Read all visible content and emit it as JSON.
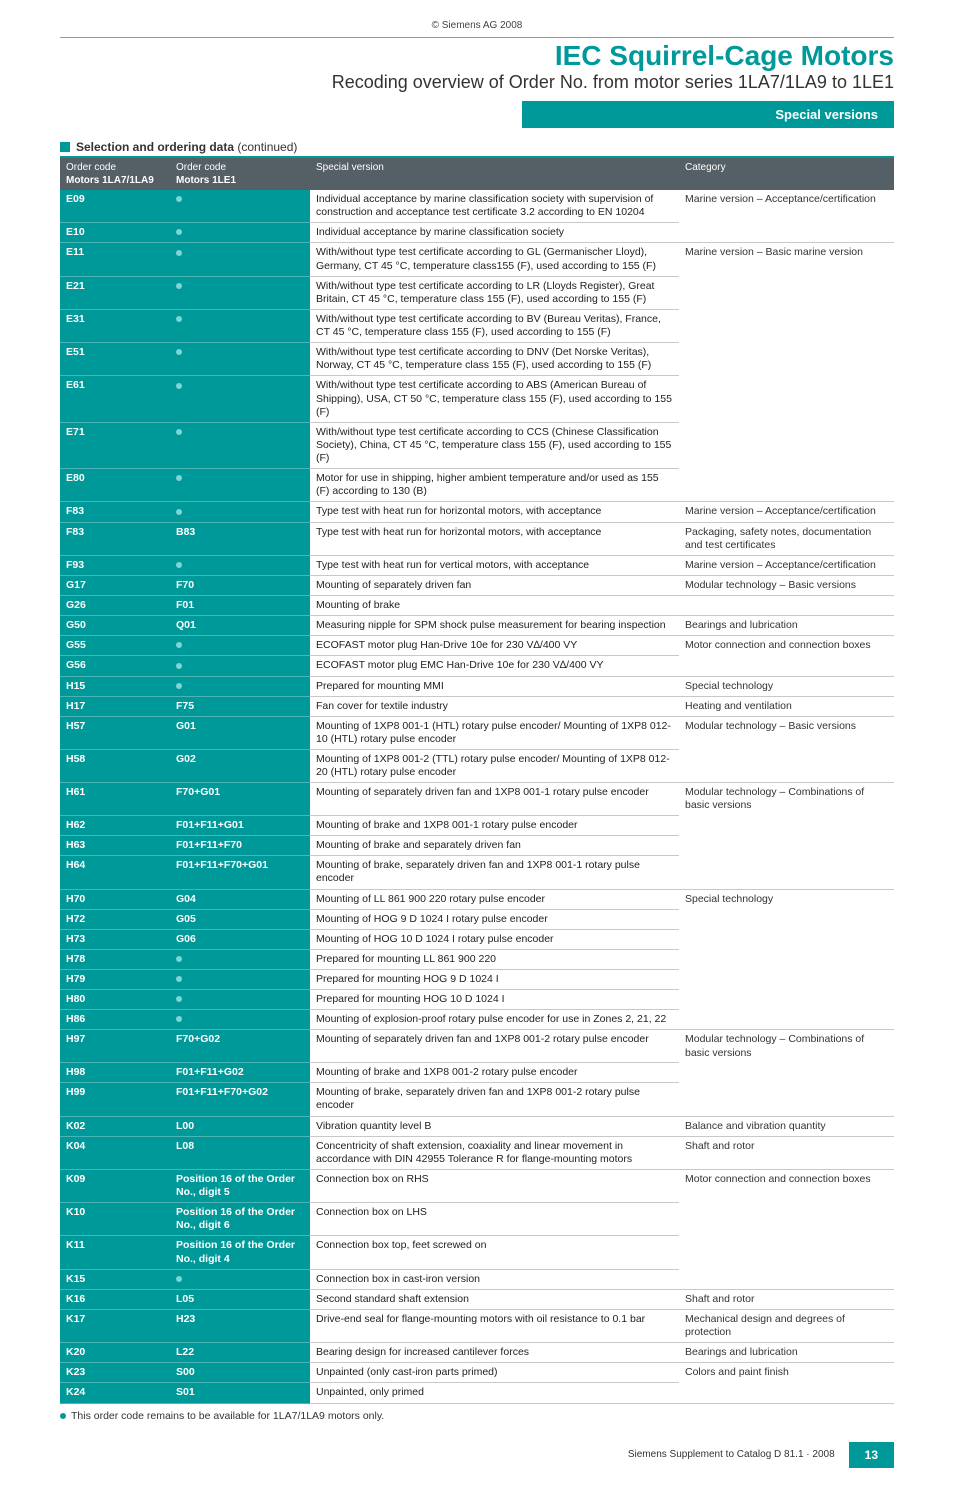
{
  "copyright": "© Siemens AG 2008",
  "title": "IEC Squirrel-Cage Motors",
  "subtitle": "Recoding overview of Order No. from motor series 1LA7/1LA9 to 1LE1",
  "special_bar": "Special versions",
  "section_head_bold": "Selection and ordering data",
  "section_head_rest": " (continued)",
  "columns": {
    "c1a": "Order code",
    "c1b": "Motors 1LA7/1LA9",
    "c2a": "Order code",
    "c2b": "Motors 1LE1",
    "c3": "Special version",
    "c4": "Category"
  },
  "rows": [
    {
      "c1": "E09",
      "c2": "",
      "dot": true,
      "desc": "Individual acceptance by marine classification society with supervision of construction and acceptance test certificate 3.2 according to EN 10204",
      "cat": "Marine version – Acceptance/certification",
      "cat_nb": true
    },
    {
      "c1": "E10",
      "c2": "",
      "dot": true,
      "desc": "Individual acceptance by marine classification society",
      "cat": ""
    },
    {
      "c1": "E11",
      "c2": "",
      "dot": true,
      "desc": "With/without type test certificate according to GL (Germanischer Lloyd), Germany, CT 45 °C, temperature class155 (F), used according to 155 (F)",
      "cat": "Marine version – Basic marine version",
      "cat_nb": true
    },
    {
      "c1": "E21",
      "c2": "",
      "dot": true,
      "desc": "With/without type test certificate according to LR (Lloyds Register), Great Britain, CT 45 °C, temperature class 155 (F), used according to 155 (F)",
      "cat": "",
      "cat_nb": true
    },
    {
      "c1": "E31",
      "c2": "",
      "dot": true,
      "desc": "With/without type test certificate according to BV (Bureau Veritas), France, CT 45 °C, temperature class 155 (F), used according to 155 (F)",
      "cat": "",
      "cat_nb": true
    },
    {
      "c1": "E51",
      "c2": "",
      "dot": true,
      "desc": "With/without type test certificate according to DNV (Det Norske Veritas), Norway, CT 45 °C, temperature class 155 (F), used according to 155 (F)",
      "cat": "",
      "cat_nb": true
    },
    {
      "c1": "E61",
      "c2": "",
      "dot": true,
      "desc": "With/without type test certificate according to ABS (American Bureau of Shipping), USA, CT 50 °C, temperature class 155 (F), used according to 155 (F)",
      "cat": "",
      "cat_nb": true
    },
    {
      "c1": "E71",
      "c2": "",
      "dot": true,
      "desc": "With/without type test certificate according to CCS (Chinese Classification Society), China, CT 45 °C, temperature class 155 (F), used according to 155 (F)",
      "cat": "",
      "cat_nb": true
    },
    {
      "c1": "E80",
      "c2": "",
      "dot": true,
      "desc": "Motor for use in shipping, higher ambient temperature and/or used as 155 (F) according to 130 (B)",
      "cat": ""
    },
    {
      "c1": "F83",
      "c2": "",
      "dot": true,
      "desc": "Type test with heat run for horizontal motors, with acceptance",
      "cat": "Marine version – Acceptance/certification"
    },
    {
      "c1": "F83",
      "c2": "B83",
      "desc": "Type test with heat run for horizontal motors, with acceptance",
      "cat": "Packaging, safety notes, documentation and test certificates"
    },
    {
      "c1": "F93",
      "c2": "",
      "dot": true,
      "desc": "Type test with heat run for vertical motors, with acceptance",
      "cat": "Marine version – Acceptance/certification"
    },
    {
      "c1": "G17",
      "c2": "F70",
      "desc": "Mounting of separately driven fan",
      "cat": "Modular technology – Basic versions"
    },
    {
      "c1": "G26",
      "c2": "F01",
      "desc": "Mounting of brake",
      "cat": ""
    },
    {
      "c1": "G50",
      "c2": "Q01",
      "desc": "Measuring nipple for SPM shock pulse measurement for bearing inspection",
      "cat": "Bearings and lubrication"
    },
    {
      "c1": "G55",
      "c2": "",
      "dot": true,
      "desc": "ECOFAST motor plug Han-Drive 10e for 230 V∆/400 VY",
      "cat": "Motor connection and connection boxes",
      "cat_nb": true
    },
    {
      "c1": "G56",
      "c2": "",
      "dot": true,
      "desc": "ECOFAST motor plug EMC Han-Drive 10e for 230 V∆/400 VY",
      "cat": ""
    },
    {
      "c1": "H15",
      "c2": "",
      "dot": true,
      "desc": "Prepared for mounting MMI",
      "cat": "Special technology"
    },
    {
      "c1": "H17",
      "c2": "F75",
      "desc": "Fan cover for textile industry",
      "cat": "Heating and ventilation"
    },
    {
      "c1": "H57",
      "c2": "G01",
      "desc": "Mounting of 1XP8 001-1 (HTL) rotary pulse encoder/ Mounting of 1XP8 012-10 (HTL) rotary pulse encoder",
      "cat": "Modular technology – Basic versions",
      "cat_nb": true
    },
    {
      "c1": "H58",
      "c2": "G02",
      "desc": "Mounting of 1XP8 001-2 (TTL) rotary pulse encoder/ Mounting of 1XP8 012-20 (HTL) rotary pulse encoder",
      "cat": ""
    },
    {
      "c1": "H61",
      "c2": "F70+G01",
      "desc": "Mounting of separately driven fan and 1XP8 001-1 rotary pulse encoder",
      "cat": "Modular technology – Combinations of basic versions",
      "cat_nb": true
    },
    {
      "c1": "H62",
      "c2": "F01+F11+G01",
      "desc": "Mounting of brake and 1XP8 001-1 rotary pulse encoder",
      "cat": "",
      "cat_nb": true
    },
    {
      "c1": "H63",
      "c2": "F01+F11+F70",
      "desc": "Mounting of brake and separately driven fan",
      "cat": "",
      "cat_nb": true
    },
    {
      "c1": "H64",
      "c2": "F01+F11+F70+G01",
      "desc": "Mounting of brake, separately driven fan and 1XP8 001-1 rotary pulse encoder",
      "cat": ""
    },
    {
      "c1": "H70",
      "c2": "G04",
      "desc": "Mounting of LL 861 900 220 rotary pulse encoder",
      "cat": "Special technology",
      "cat_nb": true
    },
    {
      "c1": "H72",
      "c2": "G05",
      "desc": "Mounting of HOG 9 D 1024 I rotary pulse encoder",
      "cat": "",
      "cat_nb": true
    },
    {
      "c1": "H73",
      "c2": "G06",
      "desc": "Mounting of HOG 10 D 1024 I rotary pulse encoder",
      "cat": "",
      "cat_nb": true
    },
    {
      "c1": "H78",
      "c2": "",
      "dot": true,
      "desc": "Prepared for mounting LL 861 900 220",
      "cat": "",
      "cat_nb": true
    },
    {
      "c1": "H79",
      "c2": "",
      "dot": true,
      "desc": "Prepared for mounting HOG 9 D 1024 I",
      "cat": "",
      "cat_nb": true
    },
    {
      "c1": "H80",
      "c2": "",
      "dot": true,
      "desc": "Prepared for mounting HOG 10 D 1024 I",
      "cat": "",
      "cat_nb": true
    },
    {
      "c1": "H86",
      "c2": "",
      "dot": true,
      "desc": "Mounting of explosion-proof rotary pulse encoder for use in Zones 2, 21, 22",
      "cat": ""
    },
    {
      "c1": "H97",
      "c2": "F70+G02",
      "desc": "Mounting of separately driven fan and 1XP8 001-2 rotary pulse encoder",
      "cat": "Modular technology – Combinations of basic versions",
      "cat_nb": true
    },
    {
      "c1": "H98",
      "c2": "F01+F11+G02",
      "desc": "Mounting of brake and 1XP8 001-2 rotary pulse encoder",
      "cat": "",
      "cat_nb": true
    },
    {
      "c1": "H99",
      "c2": "F01+F11+F70+G02",
      "desc": "Mounting of brake, separately driven fan and 1XP8 001-2 rotary pulse encoder",
      "cat": ""
    },
    {
      "c1": "K02",
      "c2": "L00",
      "desc": "Vibration quantity level B",
      "cat": "Balance and vibration quantity"
    },
    {
      "c1": "K04",
      "c2": "L08",
      "desc": "Concentricity of shaft extension, coaxiality and linear movement in accordance with DIN 42955 Tolerance R for flange-mounting motors",
      "cat": "Shaft and rotor"
    },
    {
      "c1": "K09",
      "c2": "Position 16 of the Order No., digit 5",
      "desc": "Connection box on RHS",
      "cat": "Motor connection and connection boxes",
      "cat_nb": true
    },
    {
      "c1": "K10",
      "c2": "Position 16 of the Order No., digit 6",
      "desc": "Connection box on LHS",
      "cat": "",
      "cat_nb": true
    },
    {
      "c1": "K11",
      "c2": "Position 16 of the Order No., digit 4",
      "desc": "Connection box top, feet screwed on",
      "cat": "",
      "cat_nb": true
    },
    {
      "c1": "K15",
      "c2": "",
      "dot": true,
      "desc": "Connection box in cast-iron version",
      "cat": ""
    },
    {
      "c1": "K16",
      "c2": "L05",
      "desc": "Second standard shaft extension",
      "cat": "Shaft and rotor"
    },
    {
      "c1": "K17",
      "c2": "H23",
      "desc": "Drive-end seal for flange-mounting motors with oil resistance to 0.1 bar",
      "cat": "Mechanical design and degrees of protection"
    },
    {
      "c1": "K20",
      "c2": "L22",
      "desc": "Bearing design for increased cantilever forces",
      "cat": "Bearings and lubrication"
    },
    {
      "c1": "K23",
      "c2": "S00",
      "desc": "Unpainted (only cast-iron parts primed)",
      "cat": "Colors and paint finish",
      "cat_nb": true
    },
    {
      "c1": "K24",
      "c2": "S01",
      "desc": "Unpainted, only primed",
      "cat": ""
    }
  ],
  "footnote": "This order code remains to be available for 1LA7/1LA9 motors only.",
  "footer_text": "Siemens Supplement to Catalog D 81.1 · 2008",
  "page_num": "13"
}
